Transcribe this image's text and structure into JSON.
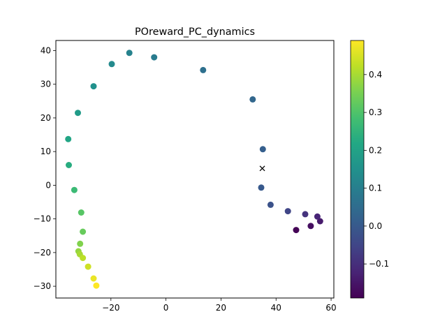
{
  "chart_data": {
    "type": "scatter",
    "title": "POreward_PC_dynamics",
    "xlabel": "",
    "ylabel": "",
    "xlim": [
      -40,
      61
    ],
    "ylim": [
      -33.5,
      43
    ],
    "xticks": [
      -20,
      0,
      20,
      40,
      60
    ],
    "yticks": [
      -30,
      -20,
      -10,
      0,
      10,
      20,
      30,
      40
    ],
    "grid": false,
    "colormap": "viridis",
    "colorbar": {
      "range": [
        -0.19,
        0.49
      ],
      "ticks": [
        -0.1,
        0.0,
        0.1,
        0.2,
        0.3,
        0.4
      ]
    },
    "points": [
      {
        "x": 47.3,
        "y": -13.3,
        "c": -0.185
      },
      {
        "x": 52.6,
        "y": -12.1,
        "c": -0.165
      },
      {
        "x": 56.0,
        "y": -10.7,
        "c": -0.14
      },
      {
        "x": 55.0,
        "y": -9.3,
        "c": -0.12
      },
      {
        "x": 50.6,
        "y": -8.6,
        "c": -0.09
      },
      {
        "x": 44.3,
        "y": -7.7,
        "c": -0.05
      },
      {
        "x": 38.0,
        "y": -5.8,
        "c": -0.02
      },
      {
        "x": 34.6,
        "y": -0.7,
        "c": 0.0
      },
      {
        "x": 35.2,
        "y": 10.7,
        "c": 0.015
      },
      {
        "x": 31.5,
        "y": 25.5,
        "c": 0.035
      },
      {
        "x": 13.5,
        "y": 34.2,
        "c": 0.06
      },
      {
        "x": -4.3,
        "y": 38.0,
        "c": 0.09
      },
      {
        "x": -13.3,
        "y": 39.3,
        "c": 0.11
      },
      {
        "x": -19.7,
        "y": 36.0,
        "c": 0.13
      },
      {
        "x": -26.3,
        "y": 29.4,
        "c": 0.15
      },
      {
        "x": -32.0,
        "y": 21.5,
        "c": 0.18
      },
      {
        "x": -35.5,
        "y": 13.7,
        "c": 0.21
      },
      {
        "x": -35.3,
        "y": 6.0,
        "c": 0.23
      },
      {
        "x": -33.3,
        "y": -1.4,
        "c": 0.27
      },
      {
        "x": -30.8,
        "y": -8.1,
        "c": 0.31
      },
      {
        "x": -30.2,
        "y": -13.8,
        "c": 0.33
      },
      {
        "x": -31.2,
        "y": -17.4,
        "c": 0.36
      },
      {
        "x": -31.8,
        "y": -19.6,
        "c": 0.38
      },
      {
        "x": -31.3,
        "y": -20.5,
        "c": 0.4
      },
      {
        "x": -30.2,
        "y": -21.6,
        "c": 0.42
      },
      {
        "x": -28.3,
        "y": -24.2,
        "c": 0.44
      },
      {
        "x": -26.3,
        "y": -27.7,
        "c": 0.47
      },
      {
        "x": -25.3,
        "y": -29.8,
        "c": 0.49
      }
    ],
    "marker": {
      "x": 35.0,
      "y": 5.0,
      "symbol": "x"
    }
  }
}
